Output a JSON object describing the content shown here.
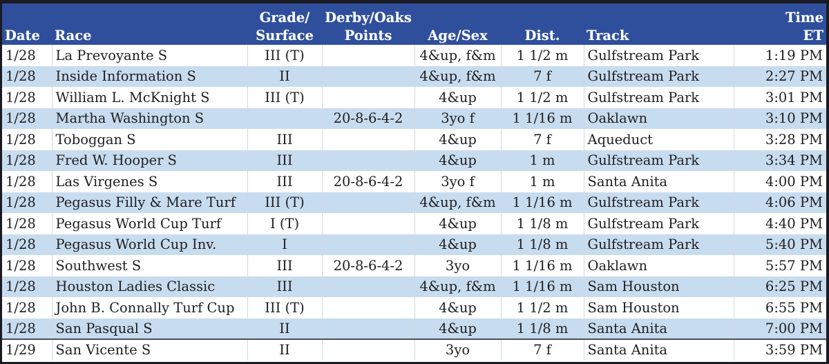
{
  "table": {
    "columns": [
      {
        "key": "date",
        "line1": "",
        "line2": "Date"
      },
      {
        "key": "race",
        "line1": "",
        "line2": "Race"
      },
      {
        "key": "grade",
        "line1": "Grade/",
        "line2": "Surface"
      },
      {
        "key": "points",
        "line1": "Derby/Oaks",
        "line2": "Points"
      },
      {
        "key": "age",
        "line1": "",
        "line2": "Age/Sex"
      },
      {
        "key": "dist",
        "line1": "",
        "line2": "Dist."
      },
      {
        "key": "track",
        "line1": "",
        "line2": "Track"
      },
      {
        "key": "time",
        "line1": "Time",
        "line2": "ET"
      }
    ],
    "rows": [
      {
        "date": "1/28",
        "race": "La Prevoyante S",
        "grade": "III (T)",
        "points": "",
        "age": "4&up, f&m",
        "dist": "1 1/2 m",
        "track": "Gulfstream Park",
        "time": "1:19 PM"
      },
      {
        "date": "1/28",
        "race": "Inside Information S",
        "grade": "II",
        "points": "",
        "age": "4&up, f&m",
        "dist": "7 f",
        "track": "Gulfstream Park",
        "time": "2:27 PM"
      },
      {
        "date": "1/28",
        "race": "William L. McKnight S",
        "grade": "III (T)",
        "points": "",
        "age": "4&up",
        "dist": "1 1/2 m",
        "track": "Gulfstream Park",
        "time": "3:01 PM"
      },
      {
        "date": "1/28",
        "race": "Martha Washington S",
        "grade": "",
        "points": "20-8-6-4-2",
        "age": "3yo f",
        "dist": "1 1/16 m",
        "track": "Oaklawn",
        "time": "3:10 PM"
      },
      {
        "date": "1/28",
        "race": "Toboggan S",
        "grade": "III",
        "points": "",
        "age": "4&up",
        "dist": "7 f",
        "track": "Aqueduct",
        "time": "3:28 PM"
      },
      {
        "date": "1/28",
        "race": "Fred W. Hooper S",
        "grade": "III",
        "points": "",
        "age": "4&up",
        "dist": "1 m",
        "track": "Gulfstream Park",
        "time": "3:34 PM"
      },
      {
        "date": "1/28",
        "race": "Las Virgenes S",
        "grade": "III",
        "points": "20-8-6-4-2",
        "age": "3yo f",
        "dist": "1 m",
        "track": "Santa Anita",
        "time": "4:00 PM"
      },
      {
        "date": "1/28",
        "race": "Pegasus Filly & Mare Turf",
        "grade": "III (T)",
        "points": "",
        "age": "4&up, f&m",
        "dist": "1 1/16 m",
        "track": "Gulfstream Park",
        "time": "4:06 PM"
      },
      {
        "date": "1/28",
        "race": "Pegasus World Cup Turf",
        "grade": "I (T)",
        "points": "",
        "age": "4&up",
        "dist": "1 1/8 m",
        "track": "Gulfstream Park",
        "time": "4:40 PM"
      },
      {
        "date": "1/28",
        "race": "Pegasus World Cup Inv.",
        "grade": "I",
        "points": "",
        "age": "4&up",
        "dist": "1 1/8 m",
        "track": "Gulfstream Park",
        "time": "5:40 PM"
      },
      {
        "date": "1/28",
        "race": "Southwest S",
        "grade": "III",
        "points": "20-8-6-4-2",
        "age": "3yo",
        "dist": "1 1/16 m",
        "track": "Oaklawn",
        "time": "5:57 PM"
      },
      {
        "date": "1/28",
        "race": "Houston Ladies Classic",
        "grade": "III",
        "points": "",
        "age": "4&up, f&m",
        "dist": "1 1/16 m",
        "track": "Sam Houston",
        "time": "6:25 PM"
      },
      {
        "date": "1/28",
        "race": "John B. Connally Turf Cup",
        "grade": "III (T)",
        "points": "",
        "age": "4&up",
        "dist": "1 1/2 m",
        "track": "Sam Houston",
        "time": "6:55 PM"
      },
      {
        "date": "1/28",
        "race": "San Pasqual S",
        "grade": "II",
        "points": "",
        "age": "4&up",
        "dist": "1 1/8 m",
        "track": "Santa Anita",
        "time": "7:00 PM"
      },
      {
        "date": "1/29",
        "race": "San Vicente S",
        "grade": "II",
        "points": "",
        "age": "3yo",
        "dist": "7 f",
        "track": "Santa Anita",
        "time": "3:59 PM"
      }
    ]
  },
  "colors": {
    "header_bg": "#2f4f9c",
    "header_text": "#ffffff",
    "row_alt_bg": "#c8dcf0",
    "row_bg": "#ffffff",
    "frame": "#1a1a22"
  }
}
